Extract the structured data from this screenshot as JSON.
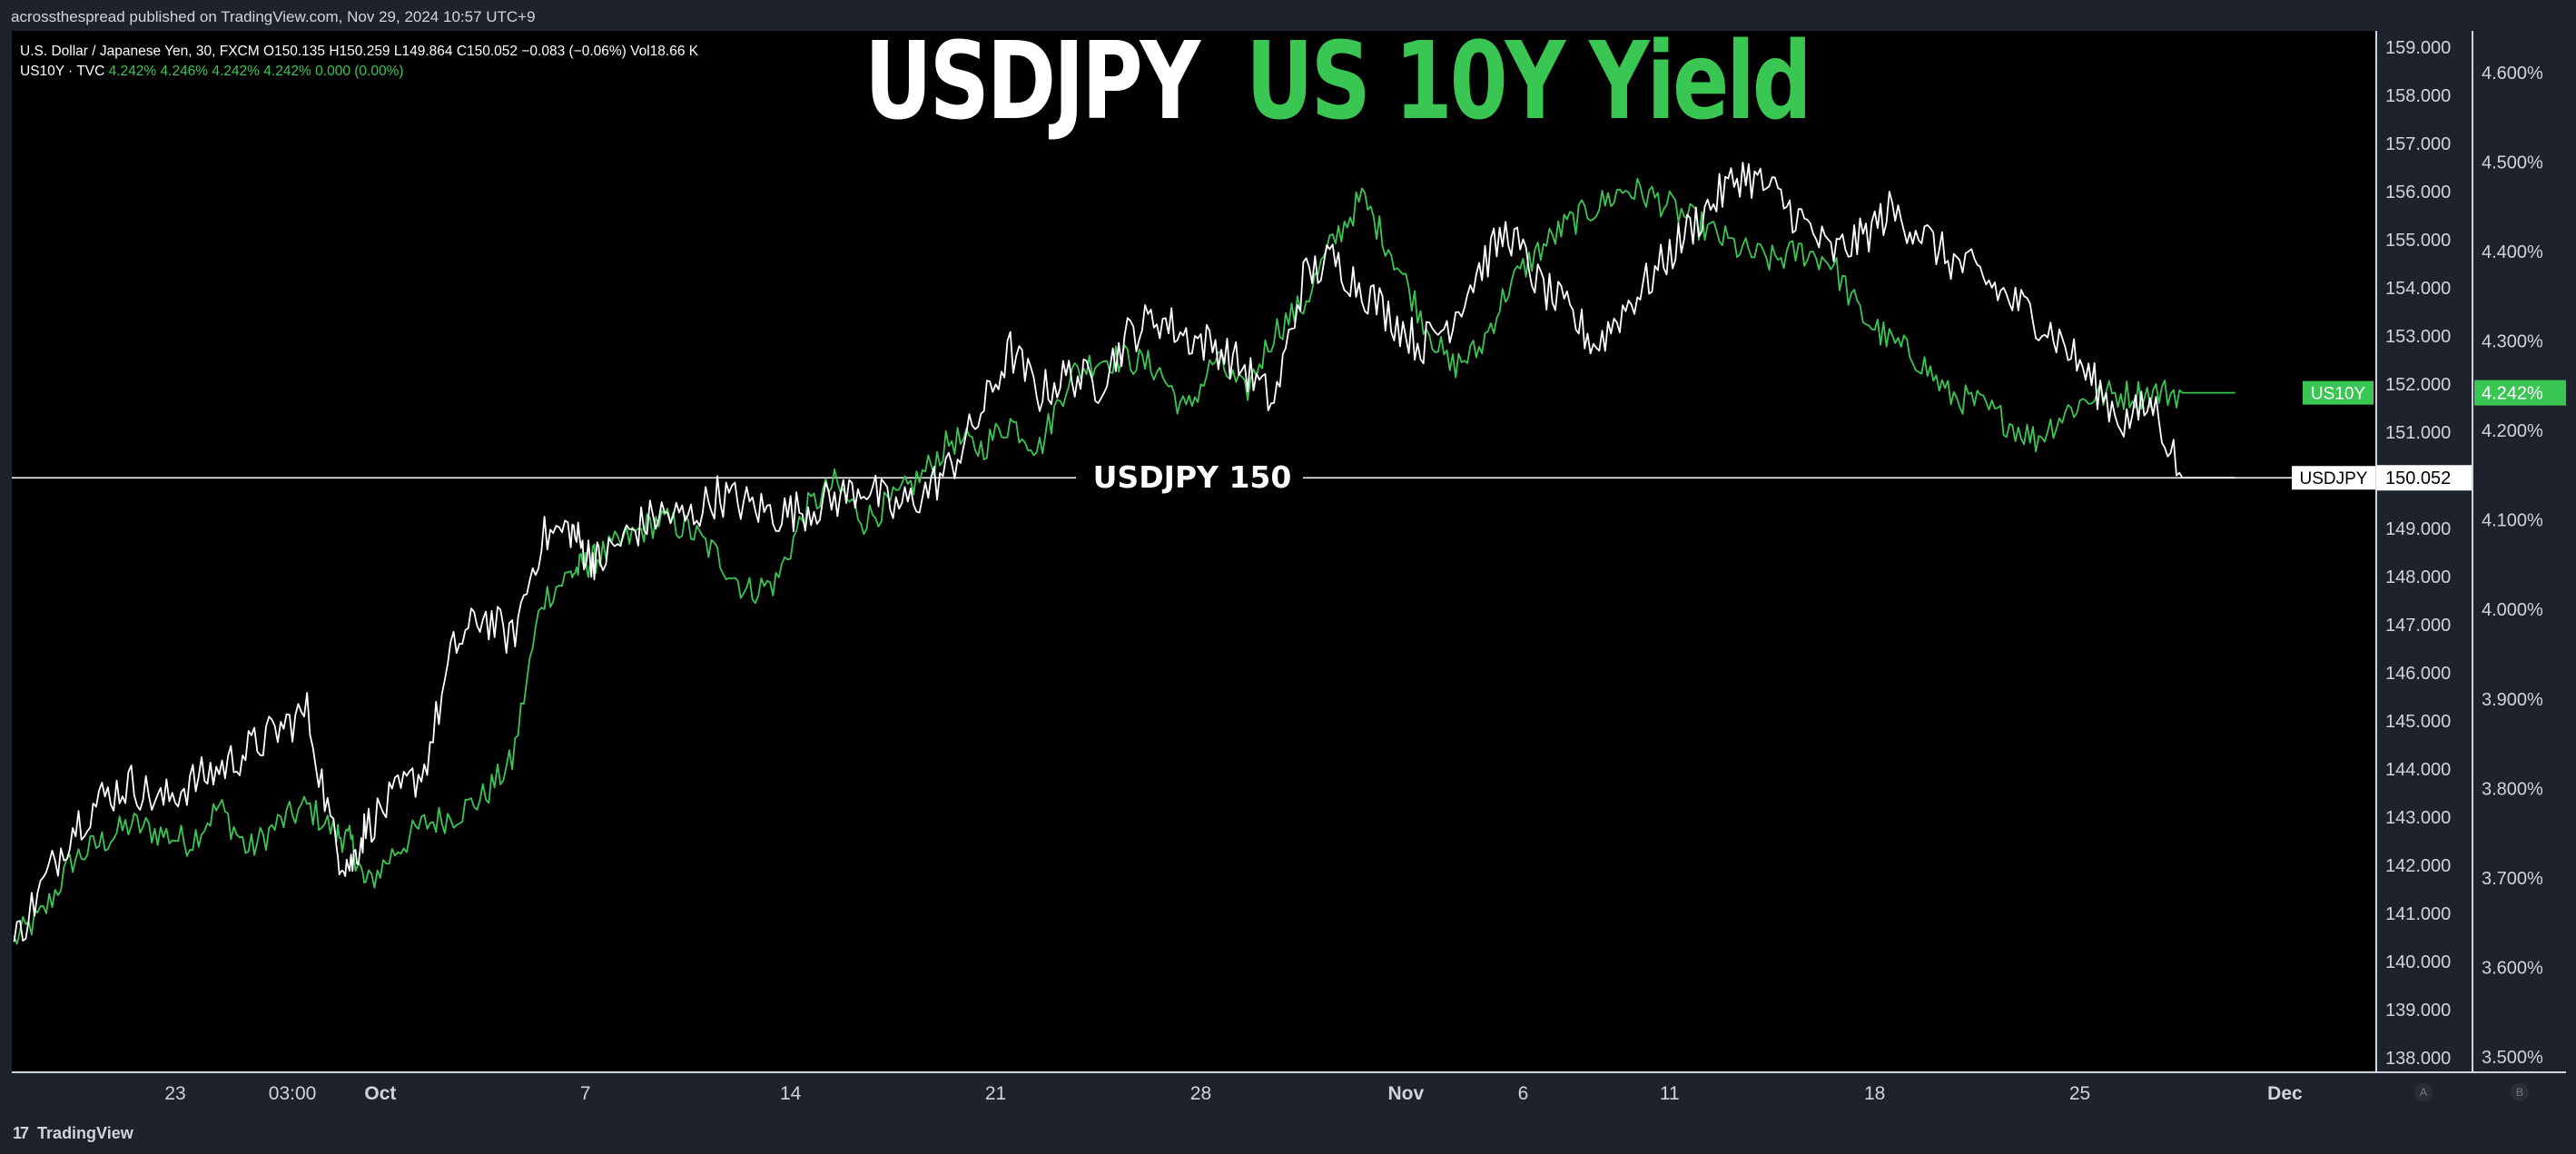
{
  "publish_info": "acrossthespread published on TradingView.com, Nov 29, 2024 10:57 UTC+9",
  "brand": {
    "logo": "17",
    "name": "TradingView"
  },
  "legend": {
    "line1": "U.S. Dollar / Japanese Yen, 30, FXCM  O150.135  H150.259  L149.864  C150.052  −0.083 (−0.06%)  Vol18.66 K",
    "line2_label": "US10Y · TVC",
    "line2_values": "4.242%  4.246%  4.242%  4.242%  0.000 (0.00%)"
  },
  "titles": {
    "usdjpy": "USDJPY",
    "yield": "US 10Y Yield"
  },
  "hline": {
    "label": "USDJPY 150",
    "value": 150.052
  },
  "scale_buttons": [
    "A",
    "B"
  ],
  "colors": {
    "usdjpy": "#ffffff",
    "us10y": "#39c653",
    "background": "#000000",
    "panel": "#1e222d"
  },
  "chart_data": {
    "type": "line",
    "x_ticks": [
      "23",
      "03:00",
      "Oct",
      "7",
      "14",
      "21",
      "28",
      "Nov",
      "6",
      "11",
      "18",
      "25",
      "Dec"
    ],
    "x_tick_days": [
      0,
      4,
      7,
      14,
      21,
      28,
      35,
      42,
      46,
      51,
      58,
      65,
      72
    ],
    "y_left_ticks": [
      "159.000",
      "158.000",
      "157.000",
      "156.000",
      "155.000",
      "154.000",
      "153.000",
      "152.000",
      "151.000",
      "150.000",
      "149.000",
      "148.000",
      "147.000",
      "146.000",
      "145.000",
      "144.000",
      "143.000",
      "142.000",
      "141.000",
      "140.000",
      "139.000",
      "138.000"
    ],
    "y_left_range": [
      137.5,
      159.5
    ],
    "y_right_ticks": [
      "4.600%",
      "4.500%",
      "4.400%",
      "4.300%",
      "4.200%",
      "4.100%",
      "4.000%",
      "3.900%",
      "3.800%",
      "3.700%",
      "3.600%",
      "3.500%"
    ],
    "y_right_range": [
      3.4625,
      4.6383
    ],
    "series": [
      {
        "name": "USDJPY",
        "axis": "left",
        "last_label": "150.052",
        "tag": "USDJPY",
        "x_days": [
          -5.5,
          -4.5,
          -3.5,
          -2.5,
          -1.5,
          -0.5,
          0.5,
          1.5,
          2.5,
          3.5,
          4.5,
          5.5,
          6,
          6.5,
          7.5,
          8.5,
          9.5,
          10.5,
          11.5,
          12.5,
          13.5,
          14,
          14.5,
          15.5,
          16.5,
          17.5,
          18.5,
          19.5,
          20.5,
          21.5,
          22.5,
          23.5,
          24.5,
          25.5,
          26.5,
          27.5,
          28.5,
          29.5,
          30.5,
          31.5,
          32.5,
          33.5,
          34.5,
          35.5,
          36.5,
          37.5,
          38.5,
          39.5,
          40.5,
          41.5,
          42.5,
          43.5,
          44.5,
          45.5,
          46.5,
          47.5,
          48.5,
          49.5,
          50.5,
          51.5,
          52.5,
          53.5,
          54.5,
          55.5,
          56.5,
          57.5,
          58.5,
          59.5,
          60.5,
          61.5,
          62.5,
          63.5,
          64.5,
          65.5,
          66.5,
          67.5,
          68.5,
          69.5,
          70.3
        ],
        "values": [
          140.4,
          141.6,
          142.8,
          143.4,
          143.7,
          143.3,
          143.7,
          144.0,
          144.4,
          144.8,
          145.2,
          142.3,
          142.0,
          142.8,
          143.4,
          144.0,
          146.5,
          147.2,
          146.7,
          148.8,
          149.0,
          148.5,
          148.3,
          148.9,
          149.3,
          149.2,
          149.7,
          149.5,
          149.3,
          149.4,
          149.6,
          149.9,
          149.4,
          149.7,
          150.3,
          151.4,
          152.7,
          151.8,
          152.2,
          152.0,
          153.0,
          153.4,
          153.0,
          152.8,
          152.3,
          151.6,
          154.2,
          154.6,
          154.0,
          153.4,
          152.8,
          153.3,
          154.4,
          155.2,
          154.1,
          153.5,
          152.8,
          153.6,
          154.3,
          155.1,
          155.8,
          156.4,
          156.0,
          155.4,
          154.7,
          155.0,
          155.6,
          155.2,
          154.6,
          154.3,
          153.8,
          153.4,
          152.8,
          152.0,
          151.2,
          151.6,
          150.052,
          150.052,
          150.052
        ]
      },
      {
        "name": "US10Y",
        "axis": "right",
        "last_label": "4.242%",
        "tag": "US10Y",
        "x_days": [
          -5.5,
          -4.5,
          -3.5,
          -2.5,
          -1.5,
          -0.5,
          0.5,
          1.5,
          2.5,
          3.5,
          4.5,
          5.5,
          6,
          6.5,
          7.5,
          8.5,
          9.5,
          10.5,
          11.5,
          12.5,
          13.5,
          14,
          14.5,
          15.5,
          16.5,
          17.5,
          18.5,
          19.5,
          20.5,
          21.5,
          22.5,
          23.5,
          24.5,
          25.5,
          26.5,
          27.5,
          28.5,
          29.5,
          30.5,
          31.5,
          32.5,
          33.5,
          34.5,
          35.5,
          36.5,
          37.5,
          38.5,
          39.5,
          40.5,
          41.5,
          42.5,
          43.5,
          44.5,
          45.5,
          46.5,
          47.5,
          48.5,
          49.5,
          50.5,
          51.5,
          52.5,
          53.5,
          54.5,
          55.5,
          56.5,
          57.5,
          58.5,
          59.5,
          60.5,
          61.5,
          62.5,
          63.5,
          64.5,
          65.5,
          66.5,
          67.5,
          68.5,
          69.5,
          70.3
        ],
        "values": [
          3.63,
          3.66,
          3.72,
          3.74,
          3.76,
          3.75,
          3.74,
          3.78,
          3.73,
          3.76,
          3.78,
          3.75,
          3.74,
          3.69,
          3.73,
          3.76,
          3.77,
          3.79,
          3.83,
          4.01,
          4.04,
          4.05,
          4.06,
          4.08,
          4.1,
          4.09,
          4.06,
          4.02,
          4.03,
          4.11,
          4.14,
          4.1,
          4.12,
          4.15,
          4.19,
          4.18,
          4.21,
          4.18,
          4.26,
          4.28,
          4.28,
          4.27,
          4.22,
          4.28,
          4.24,
          4.31,
          4.34,
          4.41,
          4.46,
          4.4,
          4.33,
          4.27,
          4.29,
          4.36,
          4.4,
          4.43,
          4.45,
          4.47,
          4.46,
          4.44,
          4.42,
          4.4,
          4.39,
          4.4,
          4.39,
          4.33,
          4.3,
          4.28,
          4.24,
          4.23,
          4.21,
          4.19,
          4.22,
          4.24,
          4.24,
          4.242,
          4.242,
          4.242,
          4.242
        ]
      }
    ]
  }
}
